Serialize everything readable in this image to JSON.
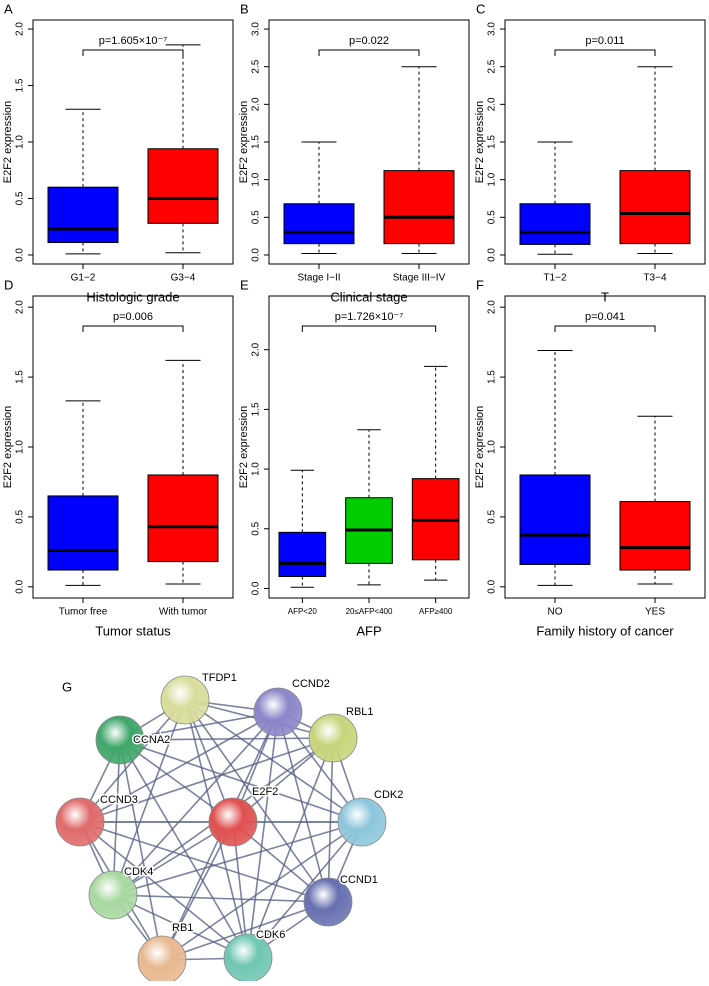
{
  "chart_data": [
    {
      "type": "box",
      "panel": "A",
      "ylabel": "E2F2 expression",
      "xlabel": "Histologic grade",
      "annotation": "p=1.605×10⁻⁷",
      "categories": [
        "G1−2",
        "G3−4"
      ],
      "colors": [
        "#0000ff",
        "#ff0000"
      ],
      "min": [
        0.01,
        0.02
      ],
      "q1": [
        0.11,
        0.28
      ],
      "median": [
        0.23,
        0.5
      ],
      "q3": [
        0.6,
        0.94
      ],
      "max": [
        1.29,
        1.86
      ],
      "ylim": [
        -0.08,
        2.08
      ],
      "yticks": [
        {
          "value": 0,
          "label": "0.0"
        },
        {
          "value": 0.5,
          "label": "0.5"
        },
        {
          "value": 1,
          "label": "1.0"
        },
        {
          "value": 1.5,
          "label": "1.5"
        },
        {
          "value": 2,
          "label": "2.0"
        }
      ]
    },
    {
      "type": "box",
      "panel": "B",
      "ylabel": "E2F2 expression",
      "xlabel": "Clinical stage",
      "annotation": "p=0.022",
      "categories": [
        "Stage I−II",
        "Stage III−IV"
      ],
      "colors": [
        "#0000ff",
        "#ff0000"
      ],
      "min": [
        0.02,
        0.02
      ],
      "q1": [
        0.15,
        0.15
      ],
      "median": [
        0.3,
        0.5
      ],
      "q3": [
        0.68,
        1.12
      ],
      "max": [
        1.5,
        2.5
      ],
      "ylim": [
        -0.12,
        3.12
      ],
      "yticks": [
        {
          "value": 0,
          "label": "0.0"
        },
        {
          "value": 0.5,
          "label": "0.5"
        },
        {
          "value": 1,
          "label": "1.0"
        },
        {
          "value": 1.5,
          "label": "1.5"
        },
        {
          "value": 2,
          "label": "2.0"
        },
        {
          "value": 2.5,
          "label": "2.5"
        },
        {
          "value": 3,
          "label": "3.0"
        }
      ]
    },
    {
      "type": "box",
      "panel": "C",
      "ylabel": "E2F2 expression",
      "xlabel": "T",
      "annotation": "p=0.011",
      "categories": [
        "T1−2",
        "T3−4"
      ],
      "colors": [
        "#0000ff",
        "#ff0000"
      ],
      "min": [
        0.01,
        0.02
      ],
      "q1": [
        0.14,
        0.15
      ],
      "median": [
        0.3,
        0.55
      ],
      "q3": [
        0.68,
        1.12
      ],
      "max": [
        1.5,
        2.5
      ],
      "ylim": [
        -0.12,
        3.12
      ],
      "yticks": [
        {
          "value": 0,
          "label": "0.0"
        },
        {
          "value": 0.5,
          "label": "0.5"
        },
        {
          "value": 1,
          "label": "1.0"
        },
        {
          "value": 1.5,
          "label": "1.5"
        },
        {
          "value": 2,
          "label": "2.0"
        },
        {
          "value": 2.5,
          "label": "2.5"
        },
        {
          "value": 3,
          "label": "3.0"
        }
      ]
    },
    {
      "type": "box",
      "panel": "D",
      "ylabel": "E2F2 expression",
      "xlabel": "Tumor status",
      "annotation": "p=0.006",
      "categories": [
        "Tumor free",
        "With tumor"
      ],
      "colors": [
        "#0000ff",
        "#ff0000"
      ],
      "min": [
        0.01,
        0.02
      ],
      "q1": [
        0.12,
        0.18
      ],
      "median": [
        0.26,
        0.43
      ],
      "q3": [
        0.65,
        0.8
      ],
      "max": [
        1.33,
        1.62
      ],
      "ylim": [
        -0.08,
        2.08
      ],
      "yticks": [
        {
          "value": 0,
          "label": "0.0"
        },
        {
          "value": 0.5,
          "label": "0.5"
        },
        {
          "value": 1,
          "label": "1.0"
        },
        {
          "value": 1.5,
          "label": "1.5"
        },
        {
          "value": 2,
          "label": "2.0"
        }
      ]
    },
    {
      "type": "box",
      "panel": "E",
      "ylabel": "E2F2 expression",
      "xlabel": "AFP",
      "annotation": "p=1.726×10⁻⁷",
      "categories": [
        "AFP<20",
        "20≤AFP<400",
        "AFP≥400"
      ],
      "colors": [
        "#0000ff",
        "#00cc00",
        "#ff0000"
      ],
      "min": [
        0.01,
        0.03,
        0.07
      ],
      "q1": [
        0.1,
        0.21,
        0.24
      ],
      "median": [
        0.21,
        0.49,
        0.57
      ],
      "q3": [
        0.47,
        0.76,
        0.92
      ],
      "max": [
        0.99,
        1.33,
        1.86
      ],
      "ylim": [
        -0.08,
        2.45
      ],
      "yticks": [
        {
          "value": 0,
          "label": "0.0"
        },
        {
          "value": 0.5,
          "label": "0.5"
        },
        {
          "value": 1,
          "label": "1.0"
        },
        {
          "value": 1.5,
          "label": "1.5"
        },
        {
          "value": 2,
          "label": "2.0"
        }
      ]
    },
    {
      "type": "box",
      "panel": "F",
      "ylabel": "E2F2 expression",
      "xlabel": "Family  history of cancer",
      "annotation": "p=0.041",
      "categories": [
        "NO",
        "YES"
      ],
      "colors": [
        "#0000ff",
        "#ff0000"
      ],
      "min": [
        0.01,
        0.02
      ],
      "q1": [
        0.16,
        0.12
      ],
      "median": [
        0.37,
        0.28
      ],
      "q3": [
        0.8,
        0.61
      ],
      "max": [
        1.69,
        1.22
      ],
      "ylim": [
        -0.08,
        2.08
      ],
      "yticks": [
        {
          "value": 0,
          "label": "0.0"
        },
        {
          "value": 0.5,
          "label": "0.5"
        },
        {
          "value": 1,
          "label": "1.0"
        },
        {
          "value": 1.5,
          "label": "1.5"
        },
        {
          "value": 2,
          "label": "2.0"
        }
      ]
    }
  ],
  "network": {
    "panel": "G",
    "nodes": [
      {
        "label": "TFDP1",
        "color": "#d8dc9a"
      },
      {
        "label": "CCND2",
        "color": "#8a86c9"
      },
      {
        "label": "CCNA2",
        "color": "#3fa66a"
      },
      {
        "label": "RBL1",
        "color": "#c8d47a"
      },
      {
        "label": "CCND3",
        "color": "#e06a6a"
      },
      {
        "label": "E2F2",
        "color": "#e05050"
      },
      {
        "label": "CDK2",
        "color": "#8cc6db"
      },
      {
        "label": "CDK4",
        "color": "#a8d8a0"
      },
      {
        "label": "CCND1",
        "color": "#6670b0"
      },
      {
        "label": "RB1",
        "color": "#e8b890"
      },
      {
        "label": "CDK6",
        "color": "#6fc6b4"
      }
    ]
  }
}
